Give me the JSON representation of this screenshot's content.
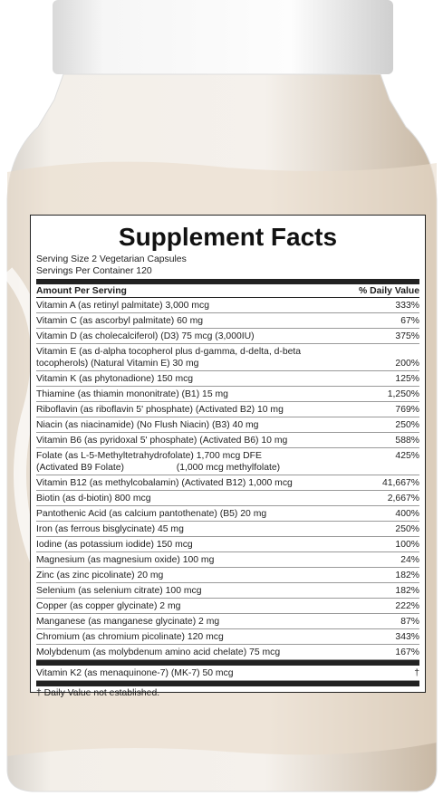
{
  "label": {
    "title": "Supplement Facts",
    "serving_size": "Serving Size 2 Vegetarian Capsules",
    "servings_per_container": "Servings Per Container 120",
    "header": {
      "amount": "Amount Per Serving",
      "dv": "% Daily Value"
    },
    "rows": [
      {
        "lines": [
          "Vitamin A (as retinyl palmitate) 3,000 mcg"
        ],
        "dv": "333%"
      },
      {
        "lines": [
          "Vitamin C (as ascorbyl palmitate) 60 mg"
        ],
        "dv": "67%"
      },
      {
        "lines": [
          "Vitamin D (as cholecalciferol) (D3) 75 mcg (3,000IU)"
        ],
        "dv": "375%"
      },
      {
        "lines": [
          "Vitamin E (as d-alpha tocopherol plus d-gamma, d-delta, d-beta",
          "tocopherols) (Natural Vitamin E) 30 mg"
        ],
        "dv": "200%"
      },
      {
        "lines": [
          "Vitamin K (as phytonadione) 150 mcg"
        ],
        "dv": "125%"
      },
      {
        "lines": [
          "Thiamine (as thiamin mononitrate) (B1) 15 mg"
        ],
        "dv": "1,250%"
      },
      {
        "lines": [
          "Riboflavin (as riboflavin 5' phosphate) (Activated B2) 10 mg"
        ],
        "dv": "769%"
      },
      {
        "lines": [
          "Niacin (as niacinamide) (No Flush Niacin) (B3) 40 mg"
        ],
        "dv": "250%"
      },
      {
        "lines": [
          "Vitamin B6 (as pyridoxal 5' phosphate) (Activated B6) 10 mg"
        ],
        "dv": "588%"
      },
      {
        "lines": [
          "Folate (as L-5-Methyltetrahydrofolate) 1,700 mcg DFE",
          "(Activated B9 Folate)                    (1,000 mcg methylfolate)"
        ],
        "dv": "425%"
      },
      {
        "lines": [
          "Vitamin B12 (as methylcobalamin) (Activated B12) 1,000 mcg"
        ],
        "dv": "41,667%"
      },
      {
        "lines": [
          "Biotin (as d-biotin) 800 mcg"
        ],
        "dv": "2,667%"
      },
      {
        "lines": [
          "Pantothenic Acid (as calcium pantothenate) (B5) 20 mg"
        ],
        "dv": "400%"
      },
      {
        "lines": [
          "Iron (as ferrous bisglycinate) 45 mg"
        ],
        "dv": "250%"
      },
      {
        "lines": [
          "Iodine (as potassium iodide) 150 mcg"
        ],
        "dv": "100%"
      },
      {
        "lines": [
          "Magnesium (as magnesium oxide) 100 mg"
        ],
        "dv": "24%"
      },
      {
        "lines": [
          "Zinc (as zinc picolinate) 20 mg"
        ],
        "dv": "182%"
      },
      {
        "lines": [
          "Selenium (as selenium citrate) 100 mcg"
        ],
        "dv": "182%"
      },
      {
        "lines": [
          "Copper (as copper glycinate) 2 mg"
        ],
        "dv": "222%"
      },
      {
        "lines": [
          "Manganese (as manganese glycinate) 2 mg"
        ],
        "dv": "87%"
      },
      {
        "lines": [
          "Chromium (as chromium picolinate) 120 mcg"
        ],
        "dv": "343%"
      },
      {
        "lines": [
          "Molybdenum (as molybdenum amino acid chelate) 75 mcg"
        ],
        "dv": "167%"
      },
      {
        "lines": [
          "Vitamin K2 (as menaquinone-7) (MK-7) 50 mcg"
        ],
        "dv": "†"
      }
    ],
    "footnote": "† Daily Value not established."
  }
}
